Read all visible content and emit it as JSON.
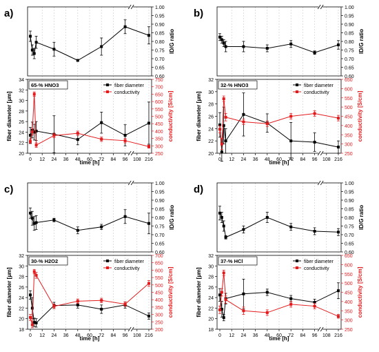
{
  "figure": {
    "panels": [
      "a)",
      "b)",
      "c)",
      "d)"
    ]
  },
  "chart_data": [
    {
      "panel": "a)",
      "type": "line",
      "condition_label": "65-% HNO3",
      "x_ticks": [
        "0",
        "12",
        "24",
        "36",
        "48",
        "60",
        "72",
        "84",
        "96",
        "108",
        "216"
      ],
      "xlabel": "time [h]",
      "top": {
        "ylabel": "ID/G ratio",
        "ylim": [
          0.6,
          1.0
        ],
        "yticks": [
          "0.60",
          "0.65",
          "0.70",
          "0.75",
          "0.80",
          "0.85",
          "0.90",
          "0.95",
          "1.00"
        ],
        "series": [
          {
            "color": "#000000",
            "x": [
              0,
              2,
              4,
              6,
              24,
              48,
              72,
              96,
              216
            ],
            "y": [
              0.83,
              0.75,
              0.73,
              0.795,
              0.755,
              0.69,
              0.77,
              0.885,
              0.835
            ],
            "err": [
              0.03,
              0.03,
              0.03,
              0.035,
              0.04,
              0.0,
              0.05,
              0.04,
              0.05
            ]
          }
        ]
      },
      "bottom": {
        "ylabel_left": "fiber diameter [µm]",
        "ylabel_right": "conductivity [S/cm]",
        "ylim_left": [
          20,
          34
        ],
        "yticks_left": [
          "20",
          "22",
          "24",
          "26",
          "28",
          "30",
          "32",
          "34"
        ],
        "ylim_right": [
          250,
          750
        ],
        "yticks_right": [
          "250",
          "300",
          "350",
          "400",
          "450",
          "500",
          "550",
          "600",
          "650",
          "700",
          "750"
        ],
        "legend": [
          "fiber diameter",
          "conductivity"
        ],
        "series": [
          {
            "name": "fiber diameter",
            "color": "#000000",
            "axis": "left",
            "x": [
              0,
              2,
              4,
              6,
              24,
              48,
              72,
              96,
              216
            ],
            "y": [
              23.4,
              24.4,
              24.0,
              24.2,
              23.6,
              22.6,
              25.8,
              23.4,
              25.7
            ],
            "err": [
              1.5,
              1.5,
              1.5,
              1.8,
              3.5,
              1.0,
              2.0,
              2.0,
              4.0
            ]
          },
          {
            "name": "conductivity",
            "color": "#e31a1c",
            "axis": "right",
            "x": [
              0,
              2,
              4,
              6,
              24,
              48,
              72,
              96,
              216
            ],
            "y": [
              330,
              395,
              650,
              305,
              370,
              385,
              345,
              335,
              295
            ],
            "err": [
              15,
              20,
              15,
              15,
              15,
              15,
              15,
              15,
              10
            ]
          }
        ]
      }
    },
    {
      "panel": "b)",
      "type": "line",
      "condition_label": "32-% HNO3",
      "x_ticks": [
        "0",
        "12",
        "24",
        "36",
        "48",
        "60",
        "72",
        "84",
        "96",
        "108",
        "216"
      ],
      "xlabel": "time [h]",
      "top": {
        "ylabel": "ID/G ratio",
        "ylim": [
          0.6,
          1.0
        ],
        "yticks": [
          "0.60",
          "0.65",
          "0.70",
          "0.75",
          "0.80",
          "0.85",
          "0.90",
          "0.95",
          "1.00"
        ],
        "series": [
          {
            "color": "#000000",
            "x": [
              0,
              2,
              4,
              6,
              24,
              48,
              72,
              96,
              216
            ],
            "y": [
              0.825,
              0.81,
              0.79,
              0.77,
              0.77,
              0.76,
              0.785,
              0.735,
              0.78
            ],
            "err": [
              0.02,
              0.02,
              0.02,
              0.03,
              0.03,
              0.02,
              0.02,
              0.01,
              0.025
            ]
          }
        ]
      },
      "bottom": {
        "ylabel_left": "fiber diameter [µm]",
        "ylabel_right": "conductivity [S/cm]",
        "ylim_left": [
          20,
          32
        ],
        "yticks_left": [
          "20",
          "22",
          "24",
          "26",
          "28",
          "30",
          "32"
        ],
        "ylim_right": [
          250,
          650
        ],
        "yticks_right": [
          "250",
          "300",
          "350",
          "400",
          "450",
          "500",
          "550",
          "600",
          "650"
        ],
        "legend": [
          "fiber diameter",
          "conductivity"
        ],
        "series": [
          {
            "name": "fiber diameter",
            "color": "#000000",
            "axis": "left",
            "x": [
              0,
              2,
              4,
              6,
              24,
              48,
              72,
              96,
              216
            ],
            "y": [
              24.6,
              20.2,
              24.5,
              22.0,
              26.3,
              24.9,
              22.0,
              21.8,
              21.0
            ],
            "err": [
              2.0,
              1.5,
              3.0,
              2.0,
              3.5,
              1.5,
              3.0,
              1.5,
              1.0
            ]
          },
          {
            "name": "conductivity",
            "color": "#e31a1c",
            "axis": "right",
            "x": [
              0,
              2,
              4,
              6,
              24,
              48,
              72,
              96,
              216
            ],
            "y": [
              380,
              300,
              545,
              445,
              420,
              410,
              450,
              465,
              440
            ],
            "err": [
              20,
              30,
              15,
              20,
              15,
              15,
              15,
              15,
              15
            ]
          }
        ]
      }
    },
    {
      "panel": "c)",
      "type": "line",
      "condition_label": "30-% H2O2",
      "x_ticks": [
        "0",
        "12",
        "24",
        "36",
        "48",
        "60",
        "72",
        "84",
        "96",
        "108",
        "216"
      ],
      "xlabel": "time [h]",
      "top": {
        "ylabel": "ID/G ratio",
        "ylim": [
          0.6,
          1.0
        ],
        "yticks": [
          "0.60",
          "0.65",
          "0.70",
          "0.75",
          "0.80",
          "0.85",
          "0.90",
          "0.95",
          "1.00"
        ],
        "series": [
          {
            "color": "#000000",
            "x": [
              0,
              2,
              4,
              6,
              24,
              48,
              72,
              96,
              216
            ],
            "y": [
              0.825,
              0.795,
              0.765,
              0.77,
              0.785,
              0.725,
              0.745,
              0.805,
              0.765
            ],
            "err": [
              0.03,
              0.04,
              0.04,
              0.04,
              0.01,
              0.02,
              0.015,
              0.04,
              0.06
            ]
          }
        ]
      },
      "bottom": {
        "ylabel_left": "fiber diameter [µm]",
        "ylabel_right": "conductivity [S/cm]",
        "ylim_left": [
          18,
          32
        ],
        "yticks_left": [
          "18",
          "20",
          "22",
          "24",
          "26",
          "28",
          "30",
          "32"
        ],
        "ylim_right": [
          200,
          700
        ],
        "yticks_right": [
          "200",
          "250",
          "300",
          "350",
          "400",
          "450",
          "500",
          "550",
          "600",
          "650",
          "700"
        ],
        "legend": [
          "fiber diameter",
          "conductivity"
        ],
        "series": [
          {
            "name": "fiber diameter",
            "color": "#000000",
            "axis": "left",
            "x": [
              0,
              2,
              4,
              6,
              24,
              48,
              72,
              96,
              216
            ],
            "y": [
              24.5,
              22.0,
              19.3,
              19.2,
              22.5,
              22.6,
              21.8,
              22.6,
              20.5
            ],
            "err": [
              0.8,
              2.0,
              0.8,
              0.8,
              0.6,
              0.6,
              0.8,
              0.6,
              0.6
            ]
          },
          {
            "name": "conductivity",
            "color": "#e31a1c",
            "axis": "right",
            "x": [
              0,
              2,
              4,
              6,
              24,
              48,
              72,
              96,
              216
            ],
            "y": [
              280,
              230,
              590,
              565,
              355,
              390,
              395,
              370,
              510
            ],
            "err": [
              20,
              20,
              15,
              20,
              15,
              15,
              15,
              15,
              20
            ]
          }
        ]
      }
    },
    {
      "panel": "d)",
      "type": "line",
      "condition_label": "37-% HCl",
      "x_ticks": [
        "0",
        "12",
        "24",
        "36",
        "48",
        "60",
        "72",
        "84",
        "96",
        "108",
        "216"
      ],
      "xlabel": "time [h]",
      "top": {
        "ylabel": "ID/G ratio",
        "ylim": [
          0.6,
          1.0
        ],
        "yticks": [
          "0.60",
          "0.65",
          "0.70",
          "0.75",
          "0.80",
          "0.85",
          "0.90",
          "0.95",
          "1.00"
        ],
        "series": [
          {
            "color": "#000000",
            "x": [
              0,
              2,
              4,
              6,
              24,
              48,
              72,
              96,
              216
            ],
            "y": [
              0.825,
              0.8,
              0.75,
              0.685,
              0.73,
              0.8,
              0.745,
              0.72,
              0.715
            ],
            "err": [
              0.04,
              0.03,
              0.03,
              0.01,
              0.02,
              0.03,
              0.02,
              0.02,
              0.02
            ]
          }
        ]
      },
      "bottom": {
        "ylabel_left": "fiber diameter [µm]",
        "ylabel_right": "conductivity [S/cm]",
        "ylim_left": [
          18,
          32
        ],
        "yticks_left": [
          "18",
          "20",
          "22",
          "24",
          "26",
          "28",
          "30",
          "32"
        ],
        "ylim_right": [
          250,
          650
        ],
        "yticks_right": [
          "250",
          "300",
          "350",
          "400",
          "450",
          "500",
          "550",
          "600",
          "650"
        ],
        "legend": [
          "fiber diameter",
          "conductivity"
        ],
        "series": [
          {
            "name": "fiber diameter",
            "color": "#000000",
            "axis": "left",
            "x": [
              0,
              2,
              4,
              6,
              24,
              48,
              72,
              96,
              216
            ],
            "y": [
              24.5,
              21.8,
              20.2,
              23.8,
              24.7,
              25.0,
              23.8,
              23.1,
              25.3
            ],
            "err": [
              1.2,
              1.5,
              0.6,
              1.0,
              2.8,
              0.6,
              0.6,
              0.6,
              1.5
            ]
          },
          {
            "name": "conductivity",
            "color": "#e31a1c",
            "axis": "right",
            "x": [
              0,
              2,
              4,
              6,
              24,
              48,
              72,
              96,
              216
            ],
            "y": [
              355,
              450,
              555,
              410,
              350,
              340,
              385,
              375,
              320
            ],
            "err": [
              20,
              20,
              15,
              20,
              20,
              15,
              15,
              15,
              10
            ]
          }
        ]
      }
    }
  ]
}
